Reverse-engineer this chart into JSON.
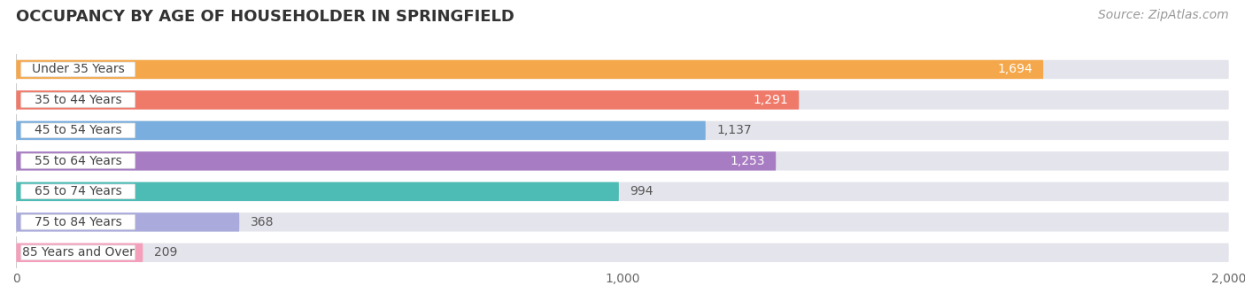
{
  "title": "OCCUPANCY BY AGE OF HOUSEHOLDER IN SPRINGFIELD",
  "source": "Source: ZipAtlas.com",
  "categories": [
    "Under 35 Years",
    "35 to 44 Years",
    "45 to 54 Years",
    "55 to 64 Years",
    "65 to 74 Years",
    "75 to 84 Years",
    "85 Years and Over"
  ],
  "values": [
    1694,
    1291,
    1137,
    1253,
    994,
    368,
    209
  ],
  "bar_colors": [
    "#F5A84B",
    "#F07A6A",
    "#79AEDE",
    "#A87CC3",
    "#4CBCB4",
    "#AAAADD",
    "#F5A0BB"
  ],
  "bar_bg_color": "#E4E4EC",
  "row_bg_color": "#F5F5FA",
  "xlim": [
    0,
    2000
  ],
  "xticks": [
    0,
    1000,
    2000
  ],
  "title_fontsize": 13,
  "label_fontsize": 10,
  "value_fontsize": 10,
  "source_fontsize": 10,
  "background_color": "#FFFFFF",
  "label_box_color": "#FFFFFF"
}
